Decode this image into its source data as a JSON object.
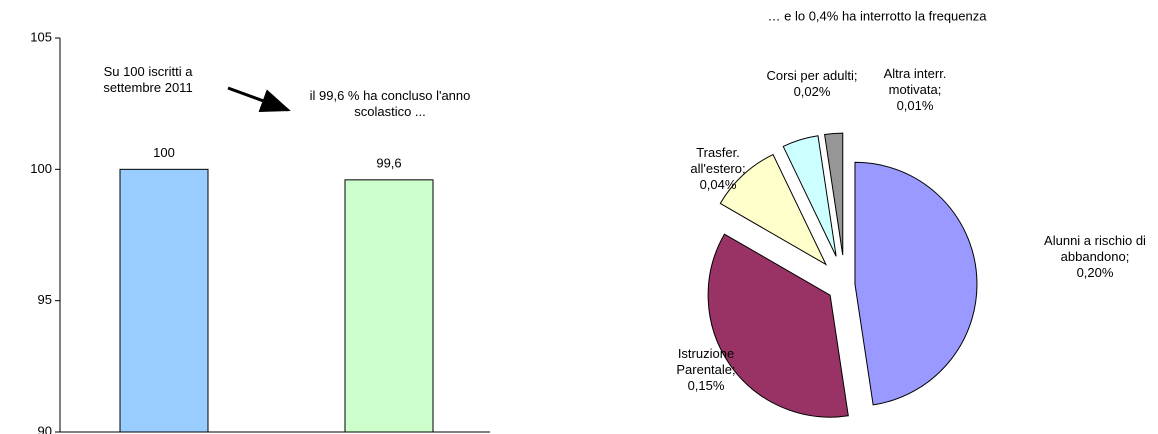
{
  "chart_data": [
    {
      "type": "bar",
      "categories": [
        null,
        null
      ],
      "values": [
        100,
        99.6
      ],
      "value_labels": [
        "100",
        "99,6"
      ],
      "colors": [
        "#99ccff",
        "#ccffcc"
      ],
      "ylim": [
        90,
        105
      ],
      "yticks": [
        90,
        95,
        100,
        105
      ],
      "annotations": [
        "Su 100 iscritti a settembre 2011",
        "il 99,6 % ha concluso l'anno scolastico ..."
      ]
    },
    {
      "type": "pie",
      "title": "… e lo 0,4% ha interrotto la frequenza",
      "categories": [
        "Alunni a rischio di abbandono;",
        "Istruzione Parentale;",
        "Trasfer. all'estero;",
        "Corsi per adulti;",
        "Altra interr. motivata;"
      ],
      "values": [
        0.2,
        0.15,
        0.04,
        0.02,
        0.01
      ],
      "value_labels": [
        "0,20%",
        "0,15%",
        "0,04%",
        "0,02%",
        "0,01%"
      ],
      "colors": [
        "#9999ff",
        "#993366",
        "#ffffcc",
        "#ccffff",
        "#969696"
      ]
    }
  ]
}
